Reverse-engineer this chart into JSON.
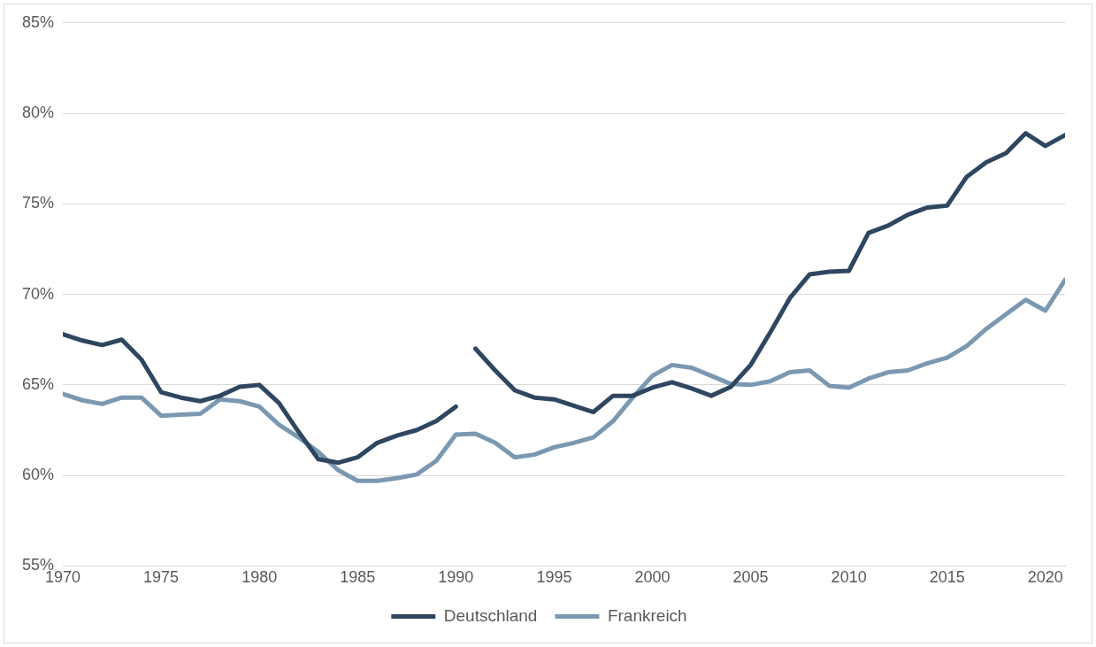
{
  "chart_data": {
    "type": "line",
    "x": [
      1970,
      1971,
      1972,
      1973,
      1974,
      1975,
      1976,
      1977,
      1978,
      1979,
      1980,
      1981,
      1982,
      1983,
      1984,
      1985,
      1986,
      1987,
      1988,
      1989,
      1990,
      1991,
      1992,
      1993,
      1994,
      1995,
      1996,
      1997,
      1998,
      1999,
      2000,
      2001,
      2002,
      2003,
      2004,
      2005,
      2006,
      2007,
      2008,
      2009,
      2010,
      2011,
      2012,
      2013,
      2014,
      2015,
      2016,
      2017,
      2018,
      2019,
      2020,
      2021
    ],
    "series": [
      {
        "name": "Deutschland",
        "color": "#2e4660",
        "x": [
          1970,
          1971,
          1972,
          1973,
          1974,
          1975,
          1976,
          1977,
          1978,
          1979,
          1980,
          1981,
          1982,
          1983,
          1984,
          1985,
          1986,
          1987,
          1988,
          1989,
          1990,
          1990.5,
          1991,
          1992,
          1993,
          1994,
          1995,
          1996,
          1997,
          1998,
          1999,
          2000,
          2001,
          2002,
          2003,
          2004,
          2005,
          2006,
          2007,
          2008,
          2009,
          2010,
          2011,
          2012,
          2013,
          2014,
          2015,
          2016,
          2017,
          2018,
          2019,
          2020,
          2021
        ],
        "values": [
          67.8,
          67.45,
          67.2,
          67.5,
          66.4,
          64.6,
          64.3,
          64.1,
          64.4,
          64.9,
          65.0,
          64.0,
          62.4,
          60.9,
          60.7,
          61.0,
          61.8,
          62.2,
          62.5,
          63.0,
          63.8,
          null,
          67.0,
          65.8,
          64.7,
          64.3,
          64.2,
          63.85,
          63.5,
          64.4,
          64.4,
          64.85,
          65.15,
          64.8,
          64.4,
          64.9,
          66.1,
          67.9,
          69.8,
          71.1,
          71.25,
          71.3,
          73.4,
          73.8,
          74.4,
          74.8,
          74.9,
          76.5,
          77.3,
          77.8,
          78.9,
          78.2,
          78.8
        ]
      },
      {
        "name": "Frankreich",
        "color": "#7b98b2",
        "values": [
          64.5,
          64.15,
          63.95,
          64.3,
          64.3,
          63.3,
          63.35,
          63.4,
          64.2,
          64.1,
          63.8,
          62.8,
          62.1,
          61.3,
          60.3,
          59.7,
          59.7,
          59.85,
          60.05,
          60.8,
          62.25,
          62.3,
          61.8,
          61.0,
          61.15,
          61.55,
          61.8,
          62.1,
          63.0,
          64.3,
          65.5,
          66.1,
          65.95,
          65.5,
          65.05,
          65.0,
          65.2,
          65.7,
          65.8,
          64.95,
          64.85,
          65.35,
          65.7,
          65.8,
          66.2,
          66.5,
          67.15,
          68.1,
          68.9,
          69.7,
          69.1,
          70.8
        ]
      }
    ],
    "xlim": [
      1970,
      2021
    ],
    "xticks": [
      1970,
      1975,
      1980,
      1985,
      1990,
      1995,
      2000,
      2005,
      2010,
      2015,
      2020
    ],
    "ylim": [
      55,
      85
    ],
    "yticks": [
      {
        "value": 55,
        "label": "55%"
      },
      {
        "value": 60,
        "label": "60%"
      },
      {
        "value": 65,
        "label": "65%"
      },
      {
        "value": 70,
        "label": "70%"
      },
      {
        "value": 75,
        "label": "75%"
      },
      {
        "value": 80,
        "label": "80%"
      },
      {
        "value": 85,
        "label": "85%"
      }
    ],
    "grid": "y",
    "legend": "bottom",
    "marker": "none",
    "line_style": "solid"
  }
}
